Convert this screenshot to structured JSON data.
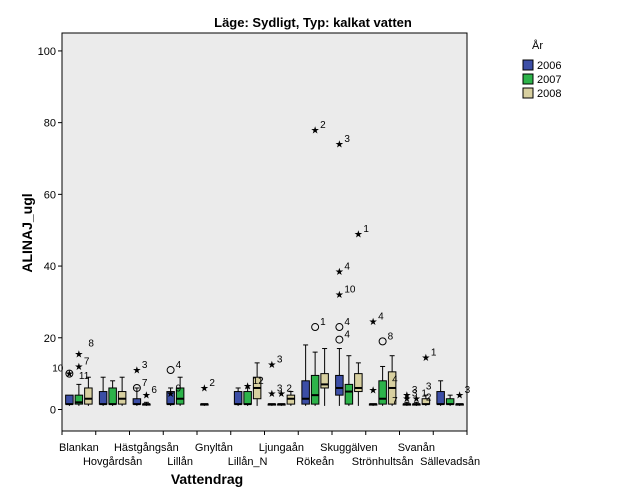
{
  "chart_data": {
    "type": "boxplot",
    "title": "Läge: Sydligt, Typ: kalkat vatten",
    "xlabel": "Vattendrag",
    "ylabel": "ALINAJ_ugl",
    "ylim": [
      -6,
      105
    ],
    "yticks": [
      0,
      20,
      40,
      60,
      80,
      100
    ],
    "grid": false,
    "legend": {
      "title": "År",
      "position": "right",
      "entries": [
        {
          "name": "2006",
          "color": "#3c4ea6"
        },
        {
          "name": "2007",
          "color": "#2db34a"
        },
        {
          "name": "2008",
          "color": "#d8d0a0"
        }
      ]
    },
    "categories": [
      "Blankan",
      "Hovgårdsån",
      "Hästgångsån",
      "Lillån",
      "Gnyltån",
      "Lillån_N",
      "Ljungaån",
      "Rökeån",
      "Skuggälven",
      "Strönhultsån",
      "Svanån",
      "Sällevadsån"
    ],
    "boxes": [
      {
        "cat": 0,
        "year": "2006",
        "min": 1,
        "q1": 1.5,
        "median": 1.5,
        "q3": 4,
        "max": 4
      },
      {
        "cat": 0,
        "year": "2007",
        "min": 1,
        "q1": 1.5,
        "median": 2,
        "q3": 4,
        "max": 7
      },
      {
        "cat": 0,
        "year": "2008",
        "min": 1,
        "q1": 1.5,
        "median": 3,
        "q3": 6,
        "max": 9
      },
      {
        "cat": 1,
        "year": "2006",
        "min": 1,
        "q1": 1.5,
        "median": 1.5,
        "q3": 5,
        "max": 9
      },
      {
        "cat": 1,
        "year": "2007",
        "min": 1,
        "q1": 1.5,
        "median": 1.5,
        "q3": 6,
        "max": 8
      },
      {
        "cat": 1,
        "year": "2008",
        "min": 1,
        "q1": 1.5,
        "median": 3,
        "q3": 5,
        "max": 9
      },
      {
        "cat": 2,
        "year": "2006",
        "min": 1,
        "q1": 1.5,
        "median": 1.5,
        "q3": 3,
        "max": 6
      },
      {
        "cat": 2,
        "year": "2007",
        "min": 1,
        "q1": 1.5,
        "median": 1.5,
        "q3": 1.5,
        "max": 2
      },
      {
        "cat": 3,
        "year": "2006",
        "min": 1,
        "q1": 1.5,
        "median": 1.5,
        "q3": 5,
        "max": 6
      },
      {
        "cat": 3,
        "year": "2007",
        "min": 1,
        "q1": 1.5,
        "median": 3,
        "q3": 6,
        "max": 9
      },
      {
        "cat": 4,
        "year": "2006",
        "min": 1,
        "q1": 1.5,
        "median": 1.5,
        "q3": 1.5,
        "max": 1.5
      },
      {
        "cat": 5,
        "year": "2006",
        "min": 1,
        "q1": 1.5,
        "median": 1.5,
        "q3": 5,
        "max": 6
      },
      {
        "cat": 5,
        "year": "2007",
        "min": 1,
        "q1": 1.5,
        "median": 1.5,
        "q3": 5,
        "max": 6
      },
      {
        "cat": 5,
        "year": "2008",
        "min": 1,
        "q1": 3,
        "median": 6,
        "q3": 9,
        "max": 13
      },
      {
        "cat": 6,
        "year": "2006",
        "min": 1,
        "q1": 1.5,
        "median": 1.5,
        "q3": 1.5,
        "max": 1.5
      },
      {
        "cat": 6,
        "year": "2007",
        "min": 1,
        "q1": 1.5,
        "median": 1.5,
        "q3": 1.5,
        "max": 1.5
      },
      {
        "cat": 6,
        "year": "2008",
        "min": 1,
        "q1": 1.5,
        "median": 3,
        "q3": 4,
        "max": 5
      },
      {
        "cat": 7,
        "year": "2006",
        "min": 1,
        "q1": 1.5,
        "median": 3,
        "q3": 8,
        "max": 18
      },
      {
        "cat": 7,
        "year": "2007",
        "min": 1,
        "q1": 1.5,
        "median": 4,
        "q3": 9.5,
        "max": 16
      },
      {
        "cat": 7,
        "year": "2008",
        "min": 1,
        "q1": 6,
        "median": 7,
        "q3": 10,
        "max": 17
      },
      {
        "cat": 8,
        "year": "2006",
        "min": 1,
        "q1": 4,
        "median": 6,
        "q3": 9.5,
        "max": 17
      },
      {
        "cat": 8,
        "year": "2007",
        "min": 1,
        "q1": 1.5,
        "median": 5,
        "q3": 7,
        "max": 15
      },
      {
        "cat": 8,
        "year": "2008",
        "min": 1,
        "q1": 5,
        "median": 6,
        "q3": 10,
        "max": 13
      },
      {
        "cat": 9,
        "year": "2006",
        "min": 1,
        "q1": 1.5,
        "median": 1.5,
        "q3": 1.5,
        "max": 1.5
      },
      {
        "cat": 9,
        "year": "2007",
        "min": 1,
        "q1": 1.5,
        "median": 3,
        "q3": 8,
        "max": 12
      },
      {
        "cat": 9,
        "year": "2008",
        "min": 1,
        "q1": 1.5,
        "median": 6,
        "q3": 10.5,
        "max": 15
      },
      {
        "cat": 10,
        "year": "2006",
        "min": 1,
        "q1": 1.5,
        "median": 1.5,
        "q3": 1.5,
        "max": 2
      },
      {
        "cat": 10,
        "year": "2007",
        "min": 1,
        "q1": 1.5,
        "median": 1.5,
        "q3": 1.5,
        "max": 2
      },
      {
        "cat": 10,
        "year": "2008",
        "min": 1,
        "q1": 1.5,
        "median": 1.5,
        "q3": 3,
        "max": 4
      },
      {
        "cat": 11,
        "year": "2006",
        "min": 1,
        "q1": 1.5,
        "median": 1.5,
        "q3": 5,
        "max": 8
      },
      {
        "cat": 11,
        "year": "2007",
        "min": 1,
        "q1": 1.5,
        "median": 1.5,
        "q3": 3,
        "max": 4
      },
      {
        "cat": 11,
        "year": "2008",
        "min": 1,
        "q1": 1.5,
        "median": 1.5,
        "q3": 1.5,
        "max": 1.5
      }
    ],
    "outliers": [
      {
        "cat": 0,
        "year": "2006",
        "value": 10,
        "marker": "circle-star",
        "label": "10"
      },
      {
        "cat": 0,
        "year": "2007",
        "value": 12,
        "marker": "star",
        "label": "7"
      },
      {
        "cat": 0,
        "year": "2007",
        "value": 15.5,
        "marker": "star",
        "label": ""
      },
      {
        "cat": 0,
        "year": "2008",
        "value": 17,
        "marker": "label",
        "label": "8"
      },
      {
        "cat": 0,
        "year": "2007",
        "value": 8,
        "marker": "label",
        "label": "11"
      },
      {
        "cat": 2,
        "year": "2006",
        "value": 11,
        "marker": "star",
        "label": "3"
      },
      {
        "cat": 2,
        "year": "2006",
        "value": 6,
        "marker": "circle",
        "label": "7"
      },
      {
        "cat": 2,
        "year": "2007",
        "value": 4,
        "marker": "star",
        "label": "6"
      },
      {
        "cat": 3,
        "year": "2006",
        "value": 4.5,
        "marker": "star",
        "label": "9"
      },
      {
        "cat": 3,
        "year": "2006",
        "value": 11,
        "marker": "circle",
        "label": "4"
      },
      {
        "cat": 4,
        "year": "2006",
        "value": 6,
        "marker": "star",
        "label": "2"
      },
      {
        "cat": 5,
        "year": "2007",
        "value": 6.5,
        "marker": "star",
        "label": "12"
      },
      {
        "cat": 6,
        "year": "2006",
        "value": 12.5,
        "marker": "star",
        "label": "3"
      },
      {
        "cat": 6,
        "year": "2006",
        "value": 4.5,
        "marker": "star",
        "label": "3"
      },
      {
        "cat": 6,
        "year": "2007",
        "value": 4.5,
        "marker": "star",
        "label": "2"
      },
      {
        "cat": 7,
        "year": "2007",
        "value": 78,
        "marker": "star",
        "label": "2"
      },
      {
        "cat": 7,
        "year": "2007",
        "value": 23,
        "marker": "circle",
        "label": "1"
      },
      {
        "cat": 8,
        "year": "2006",
        "value": 74,
        "marker": "star",
        "label": "3"
      },
      {
        "cat": 8,
        "year": "2006",
        "value": 38.5,
        "marker": "star",
        "label": "4"
      },
      {
        "cat": 8,
        "year": "2006",
        "value": 32,
        "marker": "star",
        "label": "10"
      },
      {
        "cat": 8,
        "year": "2006",
        "value": 23,
        "marker": "circle",
        "label": "4"
      },
      {
        "cat": 8,
        "year": "2006",
        "value": 19.5,
        "marker": "circle",
        "label": "4"
      },
      {
        "cat": 8,
        "year": "2008",
        "value": 49,
        "marker": "star",
        "label": "1"
      },
      {
        "cat": 9,
        "year": "2006",
        "value": 24.5,
        "marker": "star",
        "label": "4"
      },
      {
        "cat": 9,
        "year": "2006",
        "value": 5.5,
        "marker": "star",
        "label": ""
      },
      {
        "cat": 9,
        "year": "2007",
        "value": 19,
        "marker": "circle",
        "label": "8"
      },
      {
        "cat": 9,
        "year": "2008",
        "value": 7,
        "marker": "label",
        "label": "4"
      },
      {
        "cat": 9,
        "year": "2008",
        "value": 1,
        "marker": "label",
        "label": "7"
      },
      {
        "cat": 10,
        "year": "2006",
        "value": 4,
        "marker": "star",
        "label": "3"
      },
      {
        "cat": 10,
        "year": "2006",
        "value": 3,
        "marker": "star",
        "label": "3"
      },
      {
        "cat": 10,
        "year": "2007",
        "value": 3,
        "marker": "star",
        "label": "1"
      },
      {
        "cat": 10,
        "year": "2008",
        "value": 2,
        "marker": "label",
        "label": "2"
      },
      {
        "cat": 10,
        "year": "2008",
        "value": 5,
        "marker": "label",
        "label": "3"
      },
      {
        "cat": 10,
        "year": "2008",
        "value": 14.5,
        "marker": "star",
        "label": "1"
      },
      {
        "cat": 11,
        "year": "2008",
        "value": 4,
        "marker": "star",
        "label": "3"
      }
    ]
  }
}
